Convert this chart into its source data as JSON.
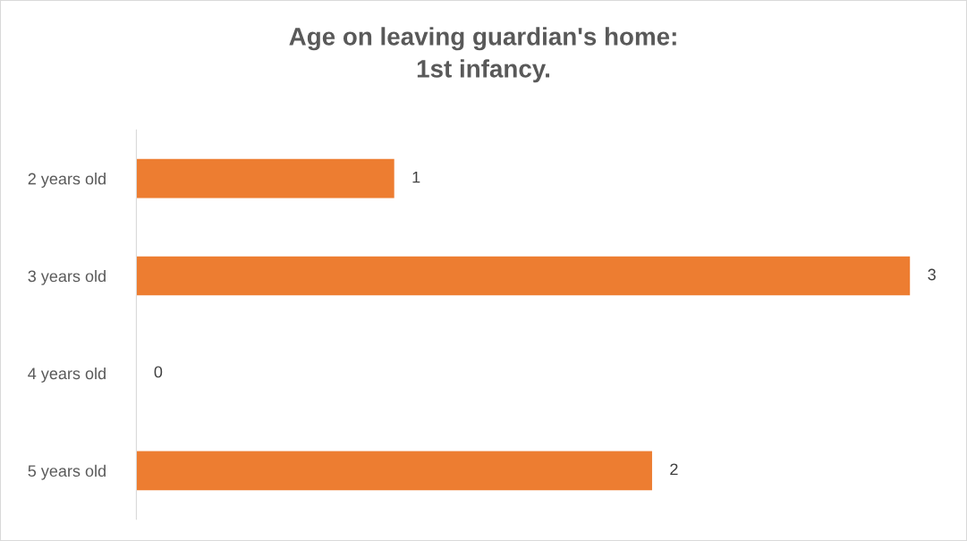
{
  "chart_data": {
    "type": "bar",
    "orientation": "horizontal",
    "title": "Age on leaving guardian's home:\n1st infancy.",
    "categories": [
      "2 years old",
      "3 years old",
      "4 years old",
      "5 years old"
    ],
    "values": [
      1,
      3,
      0,
      2
    ],
    "color": "#ed7d31",
    "data_labels": true,
    "tick_labels": "y",
    "grid": false,
    "legend": false
  }
}
